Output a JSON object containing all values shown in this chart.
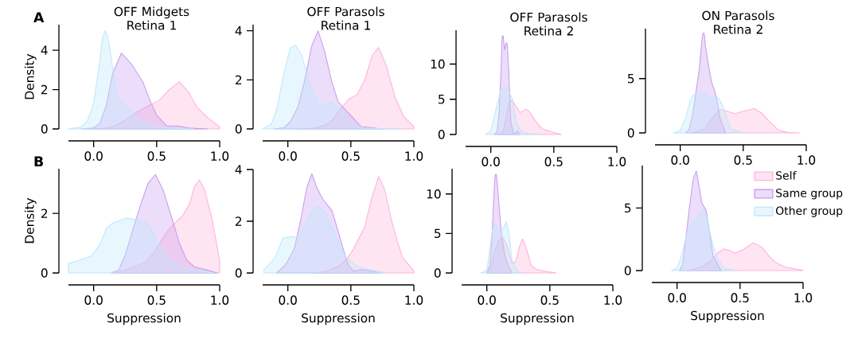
{
  "chart_data": [
    {
      "type": "area",
      "title": "OFF Midgets Retina 1",
      "ylabel": "Density",
      "annotations": [
        "A"
      ],
      "xlim": [
        -0.2,
        1.0
      ],
      "ylim": [
        0,
        5.3
      ],
      "xticks": [
        {
          "value": 0,
          "label": "0.0"
        },
        {
          "value": 0.5,
          "label": "0.5"
        },
        {
          "value": 1.0,
          "label": "1.0"
        }
      ],
      "yticks": [
        0,
        2,
        4
      ],
      "series": [
        {
          "color": "#ffb3da",
          "x": [
            0.0,
            0.1,
            0.17,
            0.25,
            0.34,
            0.43,
            0.52,
            0.6,
            0.68,
            0.75,
            0.82,
            0.9,
            1.0
          ],
          "values": [
            0,
            0.05,
            0.15,
            0.45,
            0.85,
            1.15,
            1.45,
            2.0,
            2.4,
            1.9,
            1.1,
            0.6,
            0.1
          ]
        },
        {
          "color": "#c89ef0",
          "x": [
            -0.1,
            0.0,
            0.05,
            0.1,
            0.15,
            0.22,
            0.3,
            0.39,
            0.45,
            0.5,
            0.58,
            0.67,
            0.75,
            0.9
          ],
          "values": [
            0,
            0.05,
            0.3,
            1.2,
            2.8,
            3.85,
            3.3,
            2.4,
            1.4,
            0.7,
            0.15,
            0.15,
            0.05,
            0
          ]
        },
        {
          "color": "#bde8fb",
          "x": [
            -0.2,
            -0.1,
            -0.05,
            0.0,
            0.05,
            0.07,
            0.09,
            0.11,
            0.13,
            0.17,
            0.21,
            0.27,
            0.32,
            0.4,
            0.5,
            0.6,
            0.8
          ],
          "values": [
            0,
            0.1,
            0.4,
            1.3,
            3.5,
            4.6,
            5.0,
            4.7,
            4.0,
            2.2,
            1.4,
            1.1,
            0.7,
            0.3,
            0.1,
            0.05,
            0
          ]
        }
      ]
    },
    {
      "type": "area",
      "title": "OFF Parasols Retina 1",
      "xlim": [
        -0.2,
        1.0
      ],
      "ylim": [
        0,
        4.25
      ],
      "xticks": [
        {
          "value": 0,
          "label": "0.0"
        },
        {
          "value": 0.5,
          "label": "0.5"
        },
        {
          "value": 1.0,
          "label": "1.0"
        }
      ],
      "yticks": [
        0,
        2,
        4
      ],
      "series": [
        {
          "color": "#ffb3da",
          "x": [
            0.05,
            0.2,
            0.3,
            0.36,
            0.41,
            0.48,
            0.55,
            0.61,
            0.67,
            0.72,
            0.78,
            0.85,
            0.92,
            1.0
          ],
          "values": [
            0,
            0.02,
            0.15,
            0.4,
            0.77,
            1.2,
            1.4,
            2.0,
            3.0,
            3.32,
            2.6,
            1.3,
            0.5,
            0.1
          ]
        },
        {
          "color": "#c89ef0",
          "x": [
            -0.11,
            -0.03,
            0.02,
            0.08,
            0.13,
            0.19,
            0.24,
            0.29,
            0.35,
            0.4,
            0.46,
            0.5,
            0.58,
            0.75
          ],
          "values": [
            0,
            0.05,
            0.3,
            0.9,
            1.9,
            3.4,
            4.0,
            3.2,
            1.9,
            1.1,
            0.77,
            0.55,
            0.1,
            0
          ]
        },
        {
          "color": "#bde8fb",
          "x": [
            -0.2,
            -0.13,
            -0.09,
            -0.03,
            0.02,
            0.06,
            0.11,
            0.17,
            0.24,
            0.3,
            0.35,
            0.41,
            0.46,
            0.54,
            0.65,
            0.9
          ],
          "values": [
            0.02,
            0.2,
            0.77,
            2.3,
            3.3,
            3.42,
            3.0,
            1.9,
            1.0,
            1.0,
            1.05,
            0.85,
            0.55,
            0.1,
            0.02,
            0
          ]
        }
      ]
    },
    {
      "type": "area",
      "title": "OFF Parasols Retina 2",
      "xlim": [
        -0.2,
        1.0
      ],
      "ylim": [
        0,
        14.8
      ],
      "xticks": [
        {
          "value": 0,
          "label": "0.0"
        },
        {
          "value": 0.5,
          "label": "0.5"
        },
        {
          "value": 1.0,
          "label": "1.0"
        }
      ],
      "yticks": [
        0,
        5,
        10
      ],
      "series": [
        {
          "color": "#ffb3da",
          "x": [
            0.03,
            0.07,
            0.1,
            0.14,
            0.166,
            0.2,
            0.23,
            0.26,
            0.28,
            0.31,
            0.34,
            0.38,
            0.41,
            0.48,
            0.56
          ],
          "values": [
            0,
            0.1,
            0.4,
            4.3,
            4.9,
            4.0,
            3.1,
            3.4,
            3.6,
            3.2,
            2.3,
            1.3,
            0.8,
            0.4,
            0
          ]
        },
        {
          "color": "#c89ef0",
          "x": [
            0.03,
            0.05,
            0.065,
            0.082,
            0.088,
            0.092,
            0.098,
            0.102,
            0.11,
            0.118,
            0.122,
            0.128,
            0.132,
            0.142,
            0.158,
            0.179,
            0.195,
            0.212,
            0.23
          ],
          "values": [
            0,
            0.4,
            3.0,
            9.3,
            13.2,
            14.0,
            14.0,
            13.3,
            12.0,
            12.7,
            13.0,
            13.0,
            12.4,
            9.3,
            1.9,
            0.2,
            0.1,
            0.5,
            0
          ]
        },
        {
          "color": "#bde8fb",
          "x": [
            -0.04,
            0.0,
            0.04,
            0.08,
            0.11,
            0.14,
            0.17,
            0.2,
            0.24,
            0.3,
            0.41
          ],
          "values": [
            0,
            0.5,
            3.5,
            6.3,
            6.7,
            6.2,
            5.1,
            1.9,
            0.4,
            0.1,
            0
          ]
        }
      ]
    },
    {
      "type": "area",
      "title": "ON Parasols Retina 2",
      "xlim": [
        -0.2,
        1.0
      ],
      "ylim": [
        0,
        9.6
      ],
      "xticks": [
        {
          "value": 0,
          "label": "0.0"
        },
        {
          "value": 0.5,
          "label": "0.5"
        },
        {
          "value": 1.0,
          "label": "1.0"
        }
      ],
      "yticks": [
        0,
        5
      ],
      "series": [
        {
          "color": "#ffb3da",
          "x": [
            0.1,
            0.196,
            0.25,
            0.315,
            0.37,
            0.435,
            0.5,
            0.587,
            0.65,
            0.7,
            0.78,
            0.85,
            0.946
          ],
          "values": [
            0,
            0.38,
            1.3,
            2.16,
            2.0,
            1.78,
            2.0,
            2.23,
            1.8,
            1.14,
            0.25,
            0.05,
            0
          ]
        },
        {
          "color": "#c89ef0",
          "x": [
            0.044,
            0.07,
            0.098,
            0.125,
            0.152,
            0.17,
            0.177,
            0.182,
            0.188,
            0.193,
            0.2,
            0.228,
            0.25,
            0.272,
            0.295,
            0.315,
            0.36
          ],
          "values": [
            0,
            0.3,
            1.65,
            3.8,
            5.96,
            8.3,
            8.9,
            9.2,
            9.2,
            8.9,
            8.0,
            5.96,
            4.6,
            3.93,
            2.8,
            1.4,
            0
          ]
        },
        {
          "color": "#bde8fb",
          "x": [
            -0.054,
            0.0,
            0.044,
            0.08,
            0.109,
            0.15,
            0.185,
            0.24,
            0.29,
            0.32,
            0.348,
            0.375,
            0.4,
            0.5
          ],
          "values": [
            0,
            0.2,
            1.4,
            3.0,
            3.55,
            3.5,
            3.6,
            3.3,
            3.37,
            2.9,
            2.16,
            1.2,
            0.38,
            0
          ]
        }
      ]
    },
    {
      "type": "area",
      "xlabel": "Suppression",
      "ylabel": "Density",
      "annotations": [
        "B"
      ],
      "xlim": [
        -0.2,
        1.0
      ],
      "ylim": [
        0,
        3.5
      ],
      "xticks": [
        {
          "value": 0,
          "label": "0.0"
        },
        {
          "value": 0.5,
          "label": "0.5"
        },
        {
          "value": 1.0,
          "label": "1.0"
        }
      ],
      "yticks": [
        0,
        2
      ],
      "series": [
        {
          "color": "#ffb3da",
          "x": [
            0.17,
            0.25,
            0.35,
            0.42,
            0.48,
            0.54,
            0.59,
            0.65,
            0.7,
            0.76,
            0.8,
            0.84,
            0.88,
            0.94,
            1.0
          ],
          "values": [
            0,
            0.1,
            0.25,
            0.4,
            0.7,
            1.1,
            1.43,
            1.7,
            1.89,
            2.3,
            2.9,
            3.12,
            2.8,
            1.8,
            0.43
          ]
        },
        {
          "color": "#c89ef0",
          "x": [
            0.14,
            0.2,
            0.25,
            0.3,
            0.37,
            0.43,
            0.49,
            0.55,
            0.63,
            0.68,
            0.74,
            0.8,
            0.89,
            0.98
          ],
          "values": [
            0,
            0.1,
            0.6,
            1.3,
            2.26,
            3.0,
            3.3,
            2.8,
            1.71,
            1.0,
            0.43,
            0.2,
            0.11,
            0
          ]
        },
        {
          "color": "#bde8fb",
          "x": [
            -0.2,
            -0.1,
            -0.02,
            0.05,
            0.1,
            0.15,
            0.26,
            0.35,
            0.41,
            0.45,
            0.5,
            0.55,
            0.61,
            0.7,
            0.78,
            0.96
          ],
          "values": [
            0.32,
            0.45,
            0.57,
            0.95,
            1.5,
            1.67,
            1.84,
            1.78,
            1.73,
            1.5,
            1.07,
            0.7,
            0.43,
            0.2,
            0.11,
            0
          ]
        }
      ]
    },
    {
      "type": "area",
      "xlabel": "Suppression",
      "xlim": [
        -0.2,
        1.0
      ],
      "ylim": [
        0,
        4.0
      ],
      "xticks": [
        {
          "value": 0,
          "label": "0.0"
        },
        {
          "value": 0.5,
          "label": "0.5"
        },
        {
          "value": 1.0,
          "label": "1.0"
        }
      ],
      "yticks": [
        0,
        2,
        4
      ],
      "series": [
        {
          "color": "#ffb3da",
          "x": [
            0.2,
            0.3,
            0.41,
            0.47,
            0.52,
            0.57,
            0.61,
            0.66,
            0.72,
            0.77,
            0.82,
            0.87,
            0.91,
            1.0
          ],
          "values": [
            0,
            0.05,
            0.29,
            0.55,
            0.92,
            1.4,
            1.77,
            2.8,
            3.73,
            3.2,
            2.09,
            1.2,
            0.6,
            0.07
          ]
        },
        {
          "color": "#c89ef0",
          "x": [
            -0.09,
            -0.02,
            0.05,
            0.1,
            0.15,
            0.19,
            0.23,
            0.28,
            0.35,
            0.4,
            0.44,
            0.48,
            0.52,
            0.59,
            0.74
          ],
          "values": [
            0,
            0.3,
            0.92,
            2.0,
            3.3,
            3.84,
            3.3,
            2.83,
            2.41,
            1.6,
            0.92,
            0.3,
            0.07,
            0.13,
            0
          ]
        },
        {
          "color": "#bde8fb",
          "x": [
            -0.19,
            -0.1,
            -0.04,
            0.026,
            0.09,
            0.15,
            0.2,
            0.24,
            0.3,
            0.37,
            0.42,
            0.46,
            0.52,
            0.59,
            0.78
          ],
          "values": [
            0.13,
            0.6,
            1.35,
            1.4,
            1.37,
            2.0,
            2.45,
            2.57,
            2.3,
            1.56,
            1.0,
            0.6,
            0.35,
            0.18,
            0
          ]
        }
      ]
    },
    {
      "type": "area",
      "xlabel": "Suppression",
      "xlim": [
        -0.2,
        1.0
      ],
      "ylim": [
        0,
        13.2
      ],
      "xticks": [
        {
          "value": 0,
          "label": "0.0"
        },
        {
          "value": 0.5,
          "label": "0.5"
        },
        {
          "value": 1.0,
          "label": "1.0"
        }
      ],
      "yticks": [
        0,
        5,
        10
      ],
      "series": [
        {
          "color": "#ffb3da",
          "x": [
            0.0,
            0.03,
            0.06,
            0.09,
            0.126,
            0.16,
            0.2,
            0.23,
            0.26,
            0.283,
            0.31,
            0.354,
            0.4,
            0.44,
            0.55
          ],
          "values": [
            0,
            0.5,
            2.6,
            4.0,
            4.5,
            3.5,
            1.2,
            1.5,
            3.4,
            4.3,
            3.3,
            0.9,
            0.4,
            0.3,
            0
          ]
        },
        {
          "color": "#c89ef0",
          "x": [
            0.0,
            0.025,
            0.039,
            0.055,
            0.063,
            0.069,
            0.075,
            0.081,
            0.09,
            0.115,
            0.14,
            0.17,
            0.2
          ],
          "values": [
            0,
            1.0,
            4.0,
            9.5,
            11.8,
            12.5,
            12.5,
            11.8,
            10.0,
            5.0,
            2.5,
            0.9,
            0
          ]
        },
        {
          "color": "#bde8fb",
          "x": [
            -0.048,
            0.0,
            0.018,
            0.045,
            0.065,
            0.09,
            0.115,
            0.135,
            0.155,
            0.175,
            0.2,
            0.24,
            0.29
          ],
          "values": [
            0,
            0.4,
            2.3,
            5.5,
            6.3,
            5.6,
            5.1,
            5.8,
            6.5,
            5.0,
            1.6,
            0.2,
            0
          ]
        }
      ]
    },
    {
      "type": "area",
      "xlabel": "Suppression",
      "legend": "top right",
      "xlim": [
        -0.2,
        1.0
      ],
      "ylim": [
        0,
        8.4
      ],
      "xticks": [
        {
          "value": 0,
          "label": "0.0"
        },
        {
          "value": 0.5,
          "label": "0.5"
        },
        {
          "value": 1.0,
          "label": "1.0"
        }
      ],
      "yticks": [
        0,
        5
      ],
      "series": [
        {
          "name": "Self",
          "color": "#ffb3da",
          "x": [
            0.088,
            0.2,
            0.263,
            0.32,
            0.373,
            0.42,
            0.46,
            0.53,
            0.603,
            0.67,
            0.746,
            0.8,
            0.856,
            0.998
          ],
          "values": [
            0,
            0.3,
            0.73,
            1.4,
            1.73,
            1.6,
            1.4,
            1.7,
            2.22,
            1.9,
            0.96,
            0.55,
            0.29,
            0.03
          ]
        },
        {
          "name": "Same group",
          "color": "#c89ef0",
          "x": [
            0.02,
            0.045,
            0.066,
            0.1,
            0.13,
            0.153,
            0.175,
            0.197,
            0.23,
            0.26,
            0.285,
            0.35
          ],
          "values": [
            0,
            0.5,
            2.29,
            5.2,
            7.4,
            7.96,
            6.7,
            5.4,
            4.84,
            3.0,
            1.18,
            0
          ]
        },
        {
          "name": "Other group",
          "color": "#bde8fb",
          "x": [
            -0.044,
            0.0,
            0.022,
            0.055,
            0.088,
            0.12,
            0.153,
            0.18,
            0.208,
            0.235,
            0.263,
            0.29,
            0.318,
            0.373,
            0.46
          ],
          "values": [
            0,
            0.2,
            0.73,
            2.0,
            3.4,
            3.9,
            4.18,
            4.5,
            4.96,
            4.3,
            2.96,
            1.9,
            0.96,
            0.18,
            0
          ]
        }
      ]
    }
  ]
}
